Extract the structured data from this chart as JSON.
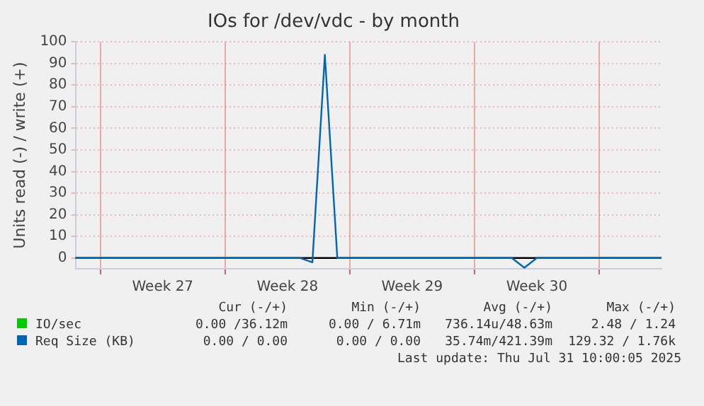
{
  "chart_data": {
    "type": "line",
    "title": "IOs for /dev/vdc - by month",
    "ylabel": "Units read (-) / write (+)",
    "categories": [
      null,
      null,
      null,
      null,
      null,
      null,
      null,
      "Week 27",
      null,
      null,
      null,
      null,
      null,
      null,
      null,
      null,
      null,
      "Week 28",
      null,
      null,
      null,
      null,
      null,
      null,
      null,
      null,
      null,
      "Week 29",
      null,
      null,
      null,
      null,
      null,
      null,
      null,
      null,
      null,
      "Week 30",
      null,
      null,
      null,
      null,
      null,
      null,
      null,
      null,
      null,
      null
    ],
    "ylim": [
      -5,
      100
    ],
    "yticks": [
      0,
      10,
      20,
      30,
      40,
      50,
      60,
      70,
      80,
      90,
      100
    ],
    "series": [
      {
        "name": "IO/sec",
        "color": "#00cc00",
        "values": [
          null,
          null,
          null,
          null,
          null,
          null,
          null,
          null,
          null,
          null,
          null,
          null,
          null,
          null,
          null,
          null,
          null,
          null,
          null,
          null,
          null,
          null,
          null,
          null,
          null,
          null,
          null,
          null,
          null,
          null,
          null,
          null,
          null,
          null,
          null,
          null,
          null,
          null,
          null,
          null,
          null,
          null,
          null,
          null,
          null,
          null,
          null,
          null
        ]
      },
      {
        "name": "Req Size (KB)",
        "color": "#0066b3",
        "values": [
          0,
          0,
          0,
          0,
          0,
          0,
          0,
          0,
          0,
          0,
          0,
          0,
          0,
          0,
          0,
          0,
          0,
          0,
          0,
          -2,
          94,
          0,
          0,
          0,
          0,
          0,
          0,
          0,
          0,
          0,
          0,
          0,
          0,
          0,
          0,
          0,
          -4.5,
          0,
          0,
          0,
          0,
          0,
          0,
          0,
          0,
          0,
          0,
          0
        ]
      }
    ],
    "ref_lines": [
      {
        "axis": "y",
        "value": 0,
        "color": "#000000"
      }
    ],
    "grid": true,
    "legend": "bottom",
    "marker": "none",
    "line_style": "solid",
    "annotations": [
      "Cur (-/+)",
      "Min (-/+)",
      "Avg (-/+)",
      "Max (-/+)",
      "0.00 /36.12m",
      "0.00 / 6.71m",
      "736.14u/48.63m",
      "2.48 / 1.24",
      "0.00 / 0.00",
      "0.00 / 0.00",
      "35.74m/421.39m",
      "129.32 / 1.76k",
      "Last update: Thu Jul 31 10:00:05 2025"
    ]
  }
}
